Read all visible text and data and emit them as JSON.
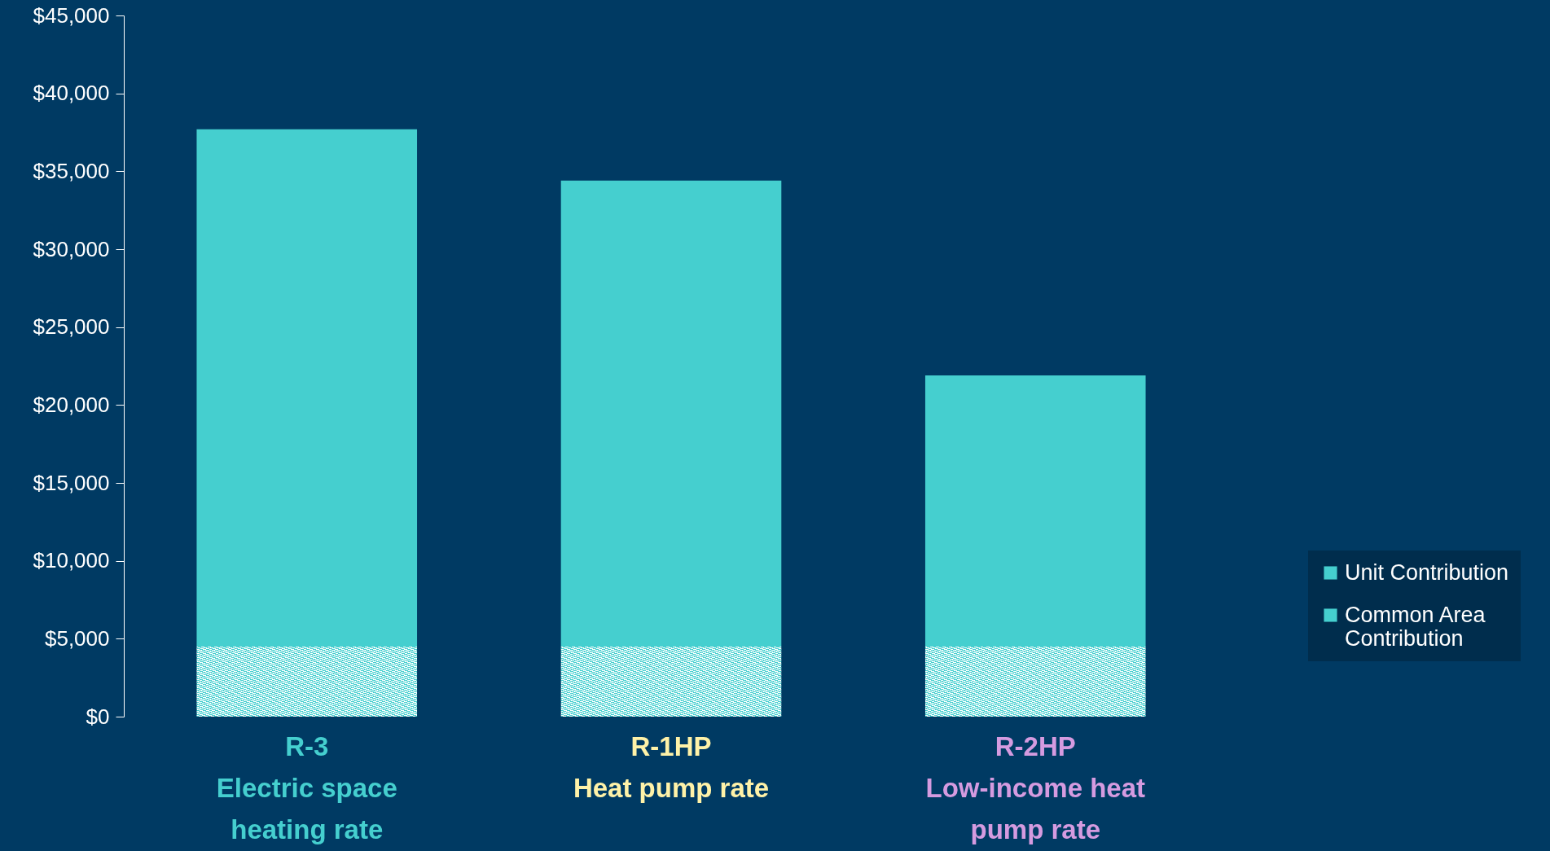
{
  "chart_data": {
    "type": "bar",
    "stacked": true,
    "categories": [
      "R-3\nElectric space heating rate",
      "R-1HP\nHeat pump rate",
      "R-2HP\nLow-income heat pump rate"
    ],
    "series": [
      {
        "name": "Common Area Contribution",
        "color": "#45cfcf",
        "values": [
          4500,
          4500,
          4500
        ]
      },
      {
        "name": "Unit Contribution",
        "color": "#45cfcf",
        "values": [
          33200,
          29900,
          17400
        ]
      }
    ],
    "ylim": [
      0,
      45000
    ],
    "yticks": [
      {
        "value": 0,
        "label": "$0"
      },
      {
        "value": 5000,
        "label": "$5,000"
      },
      {
        "value": 10000,
        "label": "$10,000"
      },
      {
        "value": 15000,
        "label": "$15,000"
      },
      {
        "value": 20000,
        "label": "$20,000"
      },
      {
        "value": 25000,
        "label": "$25,000"
      },
      {
        "value": 30000,
        "label": "$30,000"
      },
      {
        "value": 35000,
        "label": "$35,000"
      },
      {
        "value": 40000,
        "label": "$40,000"
      },
      {
        "value": 45000,
        "label": "$45,000"
      }
    ],
    "legend": "bottom right"
  }
}
